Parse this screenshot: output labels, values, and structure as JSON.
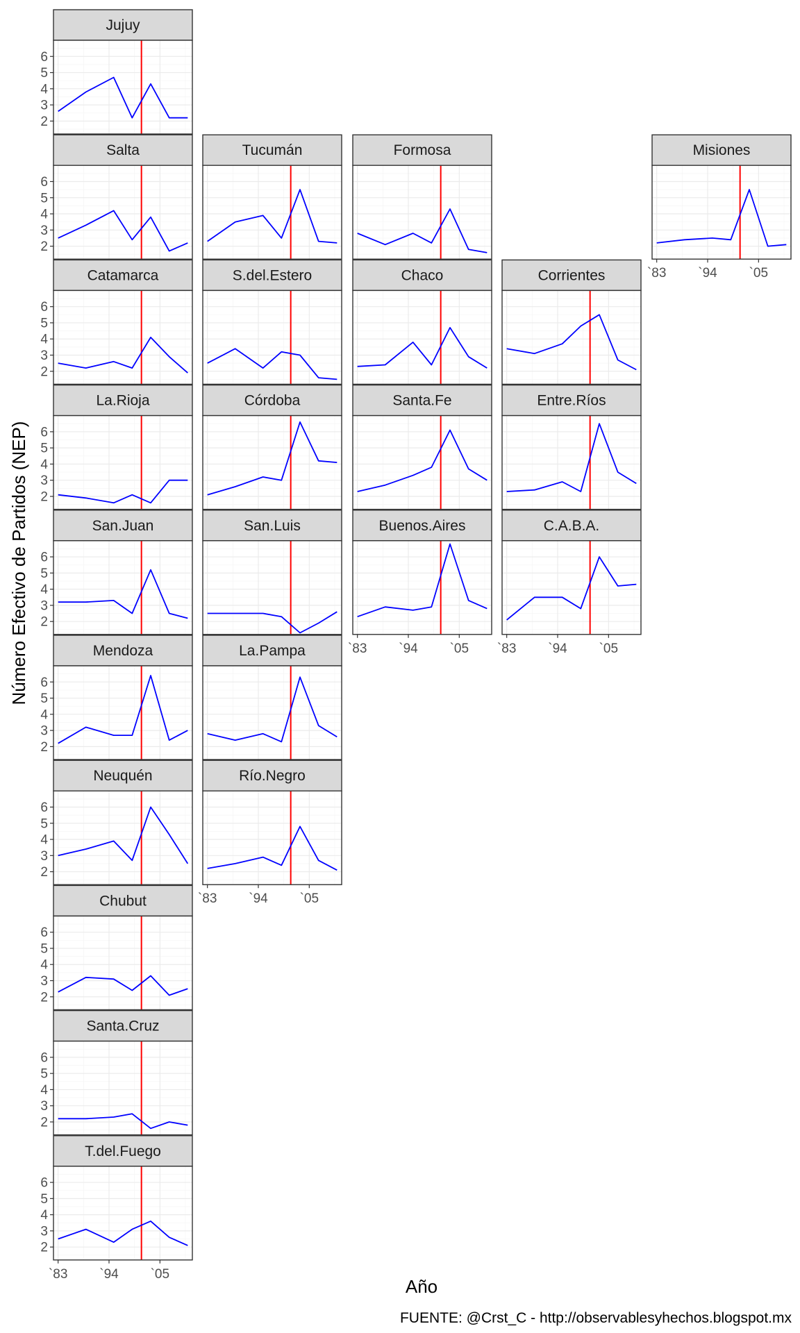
{
  "chart_data": {
    "type": "line",
    "ylabel": "Número Efectivo de Partidos (NEP)",
    "xlabel": "Año",
    "caption": "FUENTE: @Crst_C - http://observablesyhechos.blogspot.mx",
    "x": [
      1983,
      1989,
      1995,
      1999,
      2003,
      2007,
      2011
    ],
    "xlim": [
      1982,
      2012
    ],
    "ylim": [
      1.2,
      7.0
    ],
    "x_ticks": [
      1983,
      1994,
      2005
    ],
    "x_tick_labels": [
      "`83",
      "`94",
      "`05"
    ],
    "y_ticks": [
      2,
      3,
      4,
      5,
      6
    ],
    "y_tick_labels": [
      "2",
      "3",
      "4",
      "5",
      "6"
    ],
    "reference_line_x": 2001,
    "series_color": "#0000ff",
    "reference_color": "#ff0000",
    "panels": [
      {
        "name": "Jujuy",
        "row": 0,
        "col": 0,
        "values": [
          2.6,
          3.8,
          4.7,
          2.2,
          4.3,
          2.2,
          2.2
        ]
      },
      {
        "name": "Salta",
        "row": 1,
        "col": 0,
        "values": [
          2.5,
          3.3,
          4.2,
          2.4,
          3.8,
          1.7,
          2.2
        ]
      },
      {
        "name": "Tucumán",
        "row": 1,
        "col": 1,
        "values": [
          2.3,
          3.5,
          3.9,
          2.5,
          5.5,
          2.3,
          2.2
        ]
      },
      {
        "name": "Formosa",
        "row": 1,
        "col": 2,
        "values": [
          2.8,
          2.1,
          2.8,
          2.2,
          4.3,
          1.8,
          1.6
        ]
      },
      {
        "name": "Misiones",
        "row": 1,
        "col": 4,
        "values": [
          2.2,
          2.4,
          2.5,
          2.4,
          5.5,
          2.0,
          2.1
        ]
      },
      {
        "name": "Catamarca",
        "row": 2,
        "col": 0,
        "values": [
          2.5,
          2.2,
          2.6,
          2.2,
          4.1,
          2.9,
          1.9
        ]
      },
      {
        "name": "S.del.Estero",
        "row": 2,
        "col": 1,
        "values": [
          2.5,
          3.4,
          2.2,
          3.2,
          3.0,
          1.6,
          1.5
        ]
      },
      {
        "name": "Chaco",
        "row": 2,
        "col": 2,
        "values": [
          2.3,
          2.4,
          3.8,
          2.4,
          4.7,
          2.9,
          2.2
        ]
      },
      {
        "name": "Corrientes",
        "row": 2,
        "col": 3,
        "values": [
          3.4,
          3.1,
          3.7,
          4.8,
          5.5,
          2.7,
          2.1
        ]
      },
      {
        "name": "La.Rioja",
        "row": 3,
        "col": 0,
        "values": [
          2.1,
          1.9,
          1.6,
          2.1,
          1.6,
          3.0,
          3.0
        ]
      },
      {
        "name": "Córdoba",
        "row": 3,
        "col": 1,
        "values": [
          2.1,
          2.6,
          3.2,
          3.0,
          6.6,
          4.2,
          4.1
        ]
      },
      {
        "name": "Santa.Fe",
        "row": 3,
        "col": 2,
        "values": [
          2.3,
          2.7,
          3.3,
          3.8,
          6.1,
          3.7,
          3.0
        ]
      },
      {
        "name": "Entre.Ríos",
        "row": 3,
        "col": 3,
        "values": [
          2.3,
          2.4,
          2.9,
          2.3,
          6.5,
          3.5,
          2.8
        ]
      },
      {
        "name": "San.Juan",
        "row": 4,
        "col": 0,
        "values": [
          3.2,
          3.2,
          3.3,
          2.5,
          5.2,
          2.5,
          2.2
        ]
      },
      {
        "name": "San.Luis",
        "row": 4,
        "col": 1,
        "values": [
          2.5,
          2.5,
          2.5,
          2.3,
          1.3,
          1.9,
          2.6
        ]
      },
      {
        "name": "Buenos.Aires",
        "row": 4,
        "col": 2,
        "values": [
          2.3,
          2.9,
          2.7,
          2.9,
          6.8,
          3.3,
          2.8
        ]
      },
      {
        "name": "C.A.B.A.",
        "row": 4,
        "col": 3,
        "values": [
          2.1,
          3.5,
          3.5,
          2.8,
          6.0,
          4.2,
          4.3
        ]
      },
      {
        "name": "Mendoza",
        "row": 5,
        "col": 0,
        "values": [
          2.2,
          3.2,
          2.7,
          2.7,
          6.4,
          2.4,
          3.0
        ]
      },
      {
        "name": "La.Pampa",
        "row": 5,
        "col": 1,
        "values": [
          2.8,
          2.4,
          2.8,
          2.3,
          6.3,
          3.3,
          2.6
        ]
      },
      {
        "name": "Neuquén",
        "row": 6,
        "col": 0,
        "values": [
          3.0,
          3.4,
          3.9,
          2.7,
          6.0,
          4.3,
          2.5
        ]
      },
      {
        "name": "Río.Negro",
        "row": 6,
        "col": 1,
        "values": [
          2.2,
          2.5,
          2.9,
          2.4,
          4.8,
          2.7,
          2.1
        ]
      },
      {
        "name": "Chubut",
        "row": 7,
        "col": 0,
        "values": [
          2.3,
          3.2,
          3.1,
          2.4,
          3.3,
          2.1,
          2.5
        ]
      },
      {
        "name": "Santa.Cruz",
        "row": 8,
        "col": 0,
        "values": [
          2.2,
          2.2,
          2.3,
          2.5,
          1.6,
          2.0,
          1.8
        ]
      },
      {
        "name": "T.del.Fuego",
        "row": 9,
        "col": 0,
        "values": [
          2.5,
          3.1,
          2.3,
          3.1,
          3.6,
          2.6,
          2.1
        ]
      }
    ],
    "x_axis_panels": [
      "Misiones",
      "Buenos.Aires",
      "C.A.B.A.",
      "Río.Negro",
      "T.del.Fuego"
    ],
    "y_axis_cols": [
      0
    ]
  }
}
